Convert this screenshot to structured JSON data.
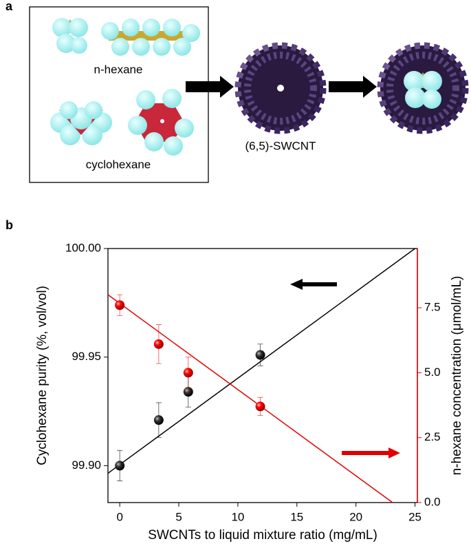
{
  "panel_labels": [
    "a",
    "b"
  ],
  "diagram": {
    "labels": [
      "n-hexane",
      "cyclohexane",
      "(6,5)-SWCNT"
    ]
  },
  "chart_data": {
    "type": "scatter",
    "x_label": "SWCNTs to liquid mixture ratio (mg/mL)",
    "y_label": "Cyclohexane purity (%, vol/vol)",
    "y2_label": "n-hexane concentration (μmol/mL)",
    "xlim": [
      -1,
      25.2
    ],
    "xticks": [
      0,
      5,
      10,
      15,
      20,
      25
    ],
    "ylim": [
      99.883,
      100.0
    ],
    "yticks": [
      {
        "value": 99.9,
        "label": "99.90"
      },
      {
        "value": 99.95,
        "label": "99.95"
      },
      {
        "value": 100.0,
        "label": "100.00"
      }
    ],
    "y2lim": [
      0,
      9.78
    ],
    "y2ticks": [
      {
        "value": 0,
        "label": "0.0"
      },
      {
        "value": 2.5,
        "label": "2.5"
      },
      {
        "value": 5,
        "label": "5.0"
      },
      {
        "value": 7.5,
        "label": "7.5"
      }
    ],
    "series": [
      {
        "color": "#000000",
        "x": [
          0,
          3.3,
          5.8,
          11.9
        ],
        "values": [
          99.9,
          99.921,
          99.934,
          99.951
        ],
        "errors": [
          0.007,
          0.008,
          0.007,
          0.005
        ]
      },
      {
        "color": "#e00000",
        "axis": "y2",
        "x": [
          0,
          3.3,
          5.8,
          11.9
        ],
        "values": [
          7.6,
          6.1,
          5.0,
          3.7
        ],
        "errors": [
          0.4,
          0.75,
          0.6,
          0.35
        ]
      }
    ],
    "fits": [
      {
        "color": "#000000",
        "x": [
          -1,
          25
        ],
        "values": [
          99.8965,
          100.0
        ]
      },
      {
        "color": "#e00000",
        "axis": "y2",
        "x": [
          -1,
          23.1
        ],
        "values": [
          8.0,
          0.0
        ]
      }
    ]
  }
}
